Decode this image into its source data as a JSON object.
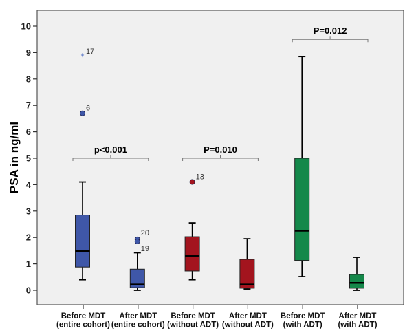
{
  "chart_data": {
    "type": "boxplot",
    "title": "",
    "xlabel": "",
    "ylabel": "PSA in ng/ml",
    "ylim": [
      -0.5,
      10.7
    ],
    "yticks": [
      0,
      1,
      2,
      3,
      4,
      5,
      6,
      7,
      8,
      9,
      10
    ],
    "grid": false,
    "categories": [
      [
        "Before MDT",
        "(entire cohort)"
      ],
      [
        "After MDT",
        "(entire cohort)"
      ],
      [
        "Before MDT",
        "(without ADT)"
      ],
      [
        "After MDT",
        "(without  ADT)"
      ],
      [
        "Before MDT",
        "(with ADT)"
      ],
      [
        "After MDT",
        "(with ADT)"
      ]
    ],
    "boxes": [
      {
        "color": "#3F57A8",
        "whisker_low": 0.4,
        "q1": 0.88,
        "median": 1.48,
        "q3": 2.85,
        "whisker_high": 4.1,
        "outliers": [
          {
            "value": 6.7,
            "label": "6",
            "marker": "circle"
          },
          {
            "value": 8.85,
            "label": "17",
            "marker": "star"
          }
        ]
      },
      {
        "color": "#3F57A8",
        "whisker_low": 0.0,
        "q1": 0.1,
        "median": 0.22,
        "q3": 0.8,
        "whisker_high": 1.42,
        "outliers": [
          {
            "value": 1.93,
            "label": "20",
            "marker": "circle"
          },
          {
            "value": 1.85,
            "label": "19",
            "marker": "circle"
          }
        ]
      },
      {
        "color": "#A3141E",
        "whisker_low": 0.4,
        "q1": 0.73,
        "median": 1.3,
        "q3": 2.03,
        "whisker_high": 2.55,
        "outliers": [
          {
            "value": 4.1,
            "label": "13",
            "marker": "circle"
          }
        ]
      },
      {
        "color": "#A3141E",
        "whisker_low": 0.05,
        "q1": 0.08,
        "median": 0.22,
        "q3": 1.17,
        "whisker_high": 1.95,
        "outliers": []
      },
      {
        "color": "#14884A",
        "whisker_low": 0.52,
        "q1": 1.13,
        "median": 2.25,
        "q3": 5.0,
        "whisker_high": 8.85,
        "outliers": []
      },
      {
        "color": "#14884A",
        "whisker_low": 0.0,
        "q1": 0.08,
        "median": 0.28,
        "q3": 0.6,
        "whisker_high": 1.25,
        "outliers": []
      }
    ],
    "annotations": [
      {
        "text": "p<0.001",
        "from": 0,
        "to": 1,
        "y": 5.0
      },
      {
        "text": "P=0.010",
        "from": 2,
        "to": 3,
        "y": 5.0
      },
      {
        "text": "P=0.012",
        "from": 4,
        "to": 5,
        "y": 9.5
      }
    ],
    "background": "#F0F0F0"
  }
}
